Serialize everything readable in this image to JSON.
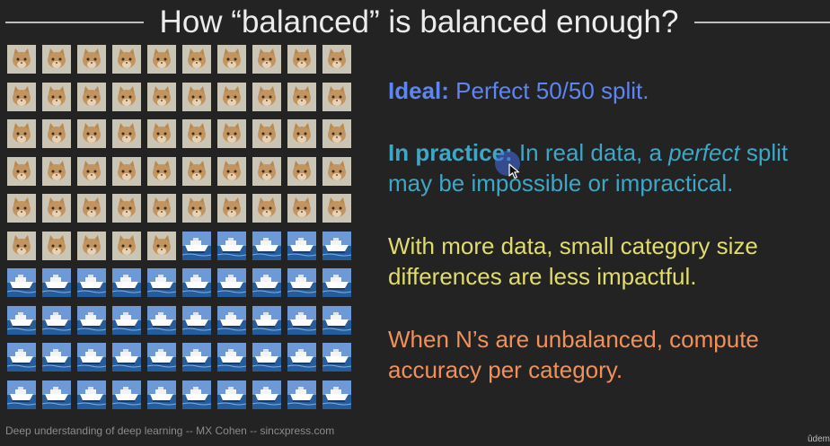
{
  "slide": {
    "title": "How “balanced” is balanced enough?",
    "footer": "Deep understanding of deep learning -- MX Cohen -- sincxpress.com",
    "brand": "ûdem"
  },
  "image_grid": {
    "rows": 10,
    "cols": 10,
    "cat_count": 55,
    "boat_count": 45,
    "tile_labels": [
      "cat-image",
      "boat-image"
    ]
  },
  "points": {
    "ideal_label": "Ideal:",
    "ideal_text": " Perfect 50/50 split.",
    "practice_label": "In practice:",
    "practice_text_a": " In real data, a ",
    "practice_text_em": "perfect",
    "practice_text_b": " split",
    "practice_line2": "may be impossible or impractical.",
    "more_data_line1": "With more data, small category size",
    "more_data_line2": "differences are less impactful.",
    "unbalanced_line1": "When N’s are unbalanced, compute",
    "unbalanced_line2": "accuracy per category."
  },
  "colors": {
    "background": "#232323",
    "title": "#ececec",
    "ideal": "#5e86f2",
    "practice": "#3ea7c6",
    "more_data": "#e1dc6b",
    "unbalanced": "#f0905a"
  },
  "icons": [
    "mouse-cursor-icon"
  ]
}
